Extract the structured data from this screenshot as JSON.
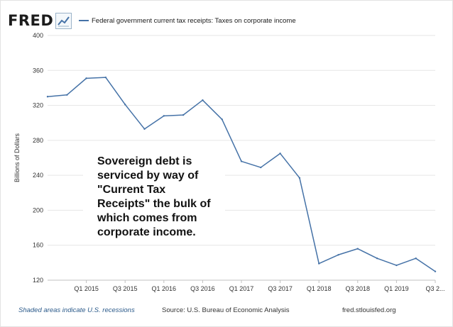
{
  "header": {
    "logo_text": "FRED",
    "legend_label": "Federal government current tax receipts: Taxes on corporate income"
  },
  "annotation": {
    "text": "Sovereign debt is\nserviced by way of\n\"Current Tax\nReceipts\" the bulk of\nwhich comes from\ncorporate income."
  },
  "footer": {
    "recession_note": "Shaded areas indicate U.S. recessions",
    "source": "Source: U.S. Bureau of Economic Analysis",
    "site": "fred.stlouisfed.org"
  },
  "colors": {
    "line": "#4572a7",
    "plot_background": "#e1e9f0",
    "gridline": "#ffffff"
  },
  "chart_data": {
    "type": "line",
    "title": "Federal government current tax receipts: Taxes on corporate income",
    "xlabel": "",
    "ylabel": "Billions of Dollars",
    "ylim": [
      120,
      400
    ],
    "yticks": [
      120,
      160,
      200,
      240,
      280,
      320,
      360,
      400
    ],
    "xticks": [
      "Q1 2015",
      "Q3 2015",
      "Q1 2016",
      "Q3 2016",
      "Q1 2017",
      "Q3 2017",
      "Q1 2018",
      "Q3 2018",
      "Q1 2019",
      "Q3 2..."
    ],
    "grid": true,
    "series": [
      {
        "name": "Federal government current tax receipts: Taxes on corporate income",
        "x": [
          "Q3 2014",
          "Q4 2014",
          "Q1 2015",
          "Q2 2015",
          "Q3 2015",
          "Q4 2015",
          "Q1 2016",
          "Q2 2016",
          "Q3 2016",
          "Q4 2016",
          "Q1 2017",
          "Q2 2017",
          "Q3 2017",
          "Q4 2017",
          "Q1 2018",
          "Q2 2018",
          "Q3 2018",
          "Q4 2018",
          "Q1 2019",
          "Q2 2019",
          "Q3 2019"
        ],
        "values": [
          330,
          332,
          351,
          352,
          321,
          293,
          308,
          309,
          326,
          304,
          256,
          249,
          265,
          237,
          139,
          149,
          156,
          145,
          137,
          145,
          130
        ]
      }
    ]
  }
}
